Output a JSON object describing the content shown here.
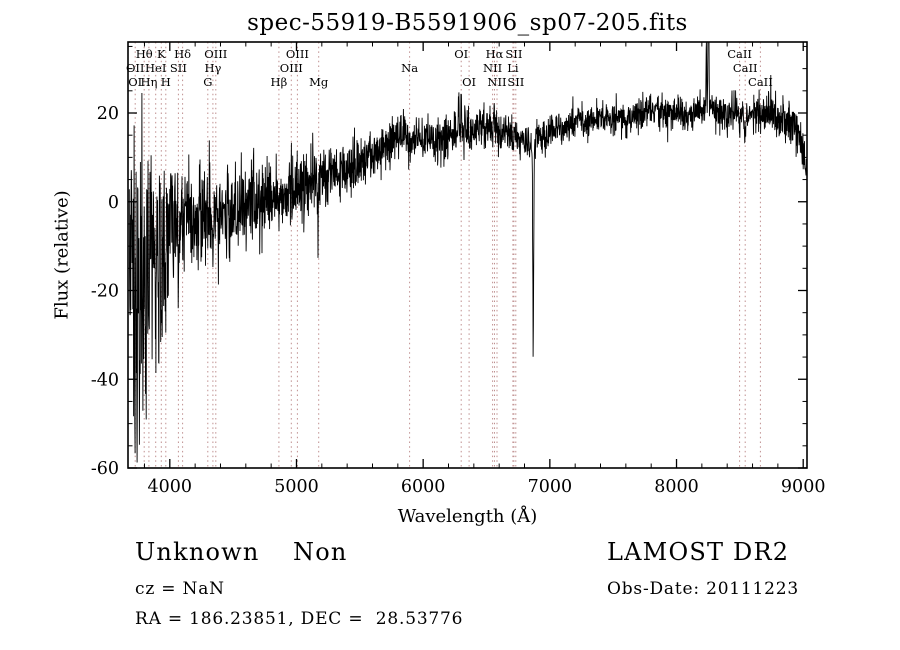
{
  "footer": {
    "class_label": "Unknown",
    "subclass_label": "Non",
    "survey": "LAMOST DR2",
    "cz": "cz = NaN",
    "obs_date": "Obs-Date: 20111223",
    "coords": "RA = 186.23851, DEC =  28.53776"
  },
  "chart_data": {
    "type": "line",
    "title": "spec-55919-B5591906_sp07-205.fits",
    "xlabel": "Wavelength (Å)",
    "ylabel": "Flux (relative)",
    "xlim": [
      3670,
      9030
    ],
    "ylim": [
      -60,
      36
    ],
    "x_ticks": [
      4000,
      5000,
      6000,
      7000,
      8000,
      9000
    ],
    "y_ticks": [
      -60,
      -40,
      -20,
      0,
      20
    ],
    "x_minor_step": 200,
    "y_minor_step": 5,
    "grid": false,
    "legend": "none",
    "spectrum_color": "#000000",
    "marker_line_color": "#bf8f8f",
    "seed": 1337,
    "sample_step_angstrom": 2,
    "continuum_points": [
      [
        3680,
        -8
      ],
      [
        3750,
        -10
      ],
      [
        3800,
        -8
      ],
      [
        3850,
        -6
      ],
      [
        3900,
        -6
      ],
      [
        3950,
        -5
      ],
      [
        4000,
        -4
      ],
      [
        4100,
        -4
      ],
      [
        4200,
        -3
      ],
      [
        4300,
        -3
      ],
      [
        4400,
        -2
      ],
      [
        4500,
        -2
      ],
      [
        4600,
        -1
      ],
      [
        4700,
        0
      ],
      [
        4800,
        1
      ],
      [
        4900,
        2
      ],
      [
        5000,
        3
      ],
      [
        5100,
        4
      ],
      [
        5200,
        5
      ],
      [
        5300,
        6
      ],
      [
        5400,
        7
      ],
      [
        5500,
        9
      ],
      [
        5600,
        10
      ],
      [
        5700,
        12
      ],
      [
        5800,
        15
      ],
      [
        5850,
        16
      ],
      [
        5900,
        14
      ],
      [
        6000,
        14
      ],
      [
        6100,
        13
      ],
      [
        6200,
        15
      ],
      [
        6300,
        16
      ],
      [
        6400,
        16
      ],
      [
        6500,
        17
      ],
      [
        6600,
        16
      ],
      [
        6700,
        15
      ],
      [
        6800,
        13
      ],
      [
        6850,
        12
      ],
      [
        6900,
        14
      ],
      [
        7000,
        16
      ],
      [
        7100,
        17
      ],
      [
        7200,
        18
      ],
      [
        7300,
        18
      ],
      [
        7400,
        19
      ],
      [
        7500,
        19
      ],
      [
        7600,
        19
      ],
      [
        7700,
        20
      ],
      [
        7800,
        20
      ],
      [
        7900,
        20
      ],
      [
        8000,
        20
      ],
      [
        8100,
        20
      ],
      [
        8200,
        21
      ],
      [
        8300,
        21
      ],
      [
        8400,
        20
      ],
      [
        8500,
        20
      ],
      [
        8600,
        20
      ],
      [
        8700,
        20
      ],
      [
        8800,
        19
      ],
      [
        8900,
        18
      ],
      [
        8960,
        16
      ],
      [
        9000,
        12
      ],
      [
        9030,
        4
      ]
    ],
    "noise_sigma_points": [
      [
        3680,
        16
      ],
      [
        3750,
        17
      ],
      [
        3800,
        13
      ],
      [
        3850,
        11
      ],
      [
        3900,
        9
      ],
      [
        3950,
        8
      ],
      [
        4000,
        7
      ],
      [
        4100,
        6
      ],
      [
        4200,
        5.5
      ],
      [
        4400,
        5
      ],
      [
        4700,
        4.2
      ],
      [
        5000,
        3.6
      ],
      [
        5500,
        3
      ],
      [
        6000,
        2.6
      ],
      [
        6500,
        2.3
      ],
      [
        7000,
        2
      ],
      [
        7500,
        1.9
      ],
      [
        8000,
        2
      ],
      [
        8600,
        2.2
      ],
      [
        9000,
        2.6
      ],
      [
        9030,
        3.5
      ]
    ],
    "feature_format": "[center_wavelength_A, sigma_A, amplitude_flux]",
    "absorption_emission_features": [
      [
        3727,
        3,
        -28
      ],
      [
        3740,
        3,
        -38
      ],
      [
        3762,
        3,
        -32
      ],
      [
        3788,
        3,
        -24
      ],
      [
        3812,
        3,
        -36
      ],
      [
        3835,
        3,
        -26
      ],
      [
        3860,
        3,
        -20
      ],
      [
        3890,
        3,
        -24
      ],
      [
        3912,
        3,
        -30
      ],
      [
        3933,
        4,
        -18
      ],
      [
        3968,
        4,
        -15
      ],
      [
        4026,
        3,
        -10
      ],
      [
        4068,
        3,
        -9
      ],
      [
        4101,
        4,
        -12
      ],
      [
        4226,
        3,
        -8
      ],
      [
        4340,
        4,
        -10
      ],
      [
        4383,
        3,
        -7
      ],
      [
        4450,
        3,
        -6
      ],
      [
        4861,
        4,
        -5
      ],
      [
        5175,
        7,
        -4
      ],
      [
        5577,
        2.5,
        5
      ],
      [
        5893,
        7,
        -5
      ],
      [
        6280,
        3,
        7
      ],
      [
        6301,
        2.5,
        9
      ],
      [
        6563,
        4,
        3
      ],
      [
        6869,
        4,
        -44
      ],
      [
        7605,
        5,
        -4
      ],
      [
        8235,
        2.5,
        18
      ],
      [
        8252,
        3,
        38
      ],
      [
        8498,
        4,
        -4
      ],
      [
        8542,
        4,
        -5
      ],
      [
        8662,
        4,
        -4
      ]
    ],
    "spectral_lines": [
      {
        "label": "Hθ",
        "wavelength": 3798,
        "row": 0
      },
      {
        "label": "K",
        "wavelength": 3933,
        "row": 0
      },
      {
        "label": "Hδ",
        "wavelength": 4101,
        "row": 0
      },
      {
        "label": "OIII",
        "wavelength": 4363,
        "row": 0
      },
      {
        "label": "OIII",
        "wavelength": 5007,
        "row": 0
      },
      {
        "label": "OI",
        "wavelength": 6300,
        "row": 0
      },
      {
        "label": "Hα",
        "wavelength": 6563,
        "row": 0
      },
      {
        "label": "SII",
        "wavelength": 6716,
        "row": 0
      },
      {
        "label": "CaII",
        "wavelength": 8498,
        "row": 0
      },
      {
        "label": "OII",
        "wavelength": 3727,
        "row": 1
      },
      {
        "label": "HeI",
        "wavelength": 3889,
        "row": 1
      },
      {
        "label": "SII",
        "wavelength": 4068,
        "row": 1
      },
      {
        "label": "Hγ",
        "wavelength": 4340,
        "row": 1
      },
      {
        "label": "OIII",
        "wavelength": 4959,
        "row": 1
      },
      {
        "label": "Na",
        "wavelength": 5893,
        "row": 1
      },
      {
        "label": "NII",
        "wavelength": 6548,
        "row": 1
      },
      {
        "label": "Li",
        "wavelength": 6708,
        "row": 1
      },
      {
        "label": "CaII",
        "wavelength": 8542,
        "row": 1
      },
      {
        "label": "OI",
        "wavelength": 3727,
        "row": 2
      },
      {
        "label": "Hη",
        "wavelength": 3835,
        "row": 2
      },
      {
        "label": "H",
        "wavelength": 3968,
        "row": 2
      },
      {
        "label": "G",
        "wavelength": 4300,
        "row": 2
      },
      {
        "label": "Hβ",
        "wavelength": 4861,
        "row": 2
      },
      {
        "label": "Mg",
        "wavelength": 5175,
        "row": 2
      },
      {
        "label": "OI",
        "wavelength": 6363,
        "row": 2
      },
      {
        "label": "NII",
        "wavelength": 6583,
        "row": 2
      },
      {
        "label": "SII",
        "wavelength": 6731,
        "row": 2
      },
      {
        "label": "CaII",
        "wavelength": 8662,
        "row": 2
      }
    ]
  }
}
